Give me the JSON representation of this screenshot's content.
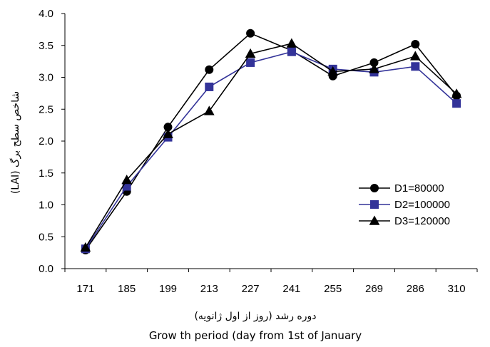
{
  "chart_data": {
    "type": "line",
    "categories": [
      "171",
      "185",
      "199",
      "213",
      "227",
      "241",
      "255",
      "269",
      "286",
      "310"
    ],
    "series": [
      {
        "name": "D1=80000",
        "color": "#000000",
        "marker": "circle",
        "values": [
          0.29,
          1.21,
          2.22,
          3.12,
          3.69,
          3.42,
          3.02,
          3.23,
          3.52,
          2.71
        ]
      },
      {
        "name": "D2=100000",
        "color": "#333399",
        "marker": "square",
        "values": [
          0.31,
          1.29,
          2.06,
          2.85,
          3.23,
          3.4,
          3.13,
          3.08,
          3.17,
          2.59
        ]
      },
      {
        "name": "D3=120000",
        "color": "#000000",
        "marker": "triangle",
        "values": [
          0.33,
          1.39,
          2.11,
          2.47,
          3.37,
          3.53,
          3.09,
          3.13,
          3.33,
          2.74
        ]
      }
    ],
    "ylim": [
      0,
      4.0
    ],
    "yticks": [
      "0.0",
      "0.5",
      "1.0",
      "1.5",
      "2.0",
      "2.5",
      "3.0",
      "3.5",
      "4.0"
    ],
    "ylabel": "شاخص سطح برگ (LAI)",
    "xlabel_fa": "دوره رشد (روز از اول ژانویه)",
    "xlabel_en": "Grow th period (day from 1st of January",
    "grid": false,
    "legend_position": "right-center"
  }
}
